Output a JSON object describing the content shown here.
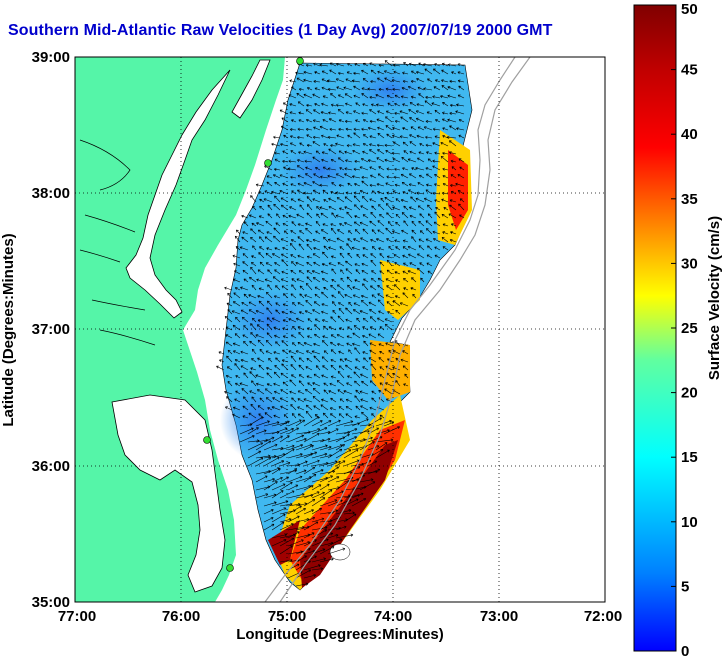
{
  "title": "Southern Mid-Atlantic Raw Velocities (1 Day Avg) 2007/07/19 2000 GMT",
  "map": {
    "xlabel": "Longitude (Degrees:Minutes)",
    "ylabel": "Latitude (Degrees:Minutes)",
    "lon_range": [
      -77,
      -72
    ],
    "lat_range": [
      35,
      39
    ],
    "x_ticks": [
      "77:00",
      "76:00",
      "75:00",
      "74:00",
      "73:00",
      "72:00"
    ],
    "y_ticks": [
      "39:00",
      "38:00",
      "37:00",
      "36:00",
      "35:00"
    ],
    "grid": "dotted",
    "land_color": "#55f5a8",
    "coastline_color": "#000000",
    "bathymetry_color": "#a0a0a0",
    "station_color": "#33dd33"
  },
  "colorbar": {
    "label": "Surface Velocity (cm/s)",
    "ticks": [
      "0",
      "5",
      "10",
      "15",
      "20",
      "25",
      "30",
      "35",
      "40",
      "45",
      "50"
    ],
    "min": 0,
    "max": 50,
    "colormap": "jet"
  }
}
